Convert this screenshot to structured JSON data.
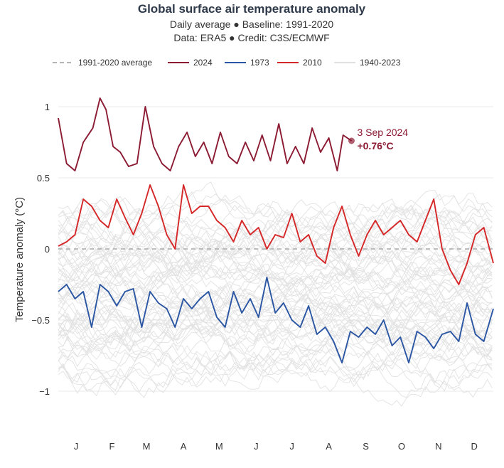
{
  "chart_data": {
    "type": "line",
    "title": "Global surface air temperature anomaly",
    "subtitle_lines": [
      "Daily average ● Baseline: 1991-2020",
      "Data: ERA5 ● Credit: C3S/ECMWF"
    ],
    "ylabel": "Temperature anomaly (°C)",
    "xlabel": "",
    "ylim": [
      -1.25,
      1.15
    ],
    "yticks": [
      1,
      0.5,
      0,
      -0.5,
      -1
    ],
    "ytick_labels": [
      "1",
      "0.5",
      "0",
      "−0.5",
      "−1"
    ],
    "xlim": [
      1,
      366
    ],
    "x_tick_days": [
      16,
      46,
      75,
      106,
      136,
      167,
      197,
      228,
      259,
      289,
      320,
      350
    ],
    "x_tick_labels": [
      "J",
      "F",
      "M",
      "A",
      "M",
      "J",
      "J",
      "A",
      "S",
      "O",
      "N",
      "D"
    ],
    "legend_placement": "top",
    "grid": true,
    "legend": [
      {
        "name": "1991-2020 average",
        "color": "#aaaaaa",
        "dash": true
      },
      {
        "name": "2024",
        "color": "#8b1a32"
      },
      {
        "name": "1973",
        "color": "#2b56a3"
      },
      {
        "name": "2010",
        "color": "#d62728"
      },
      {
        "name": "1940-2023",
        "color": "#e0e0e0"
      }
    ],
    "series": [
      {
        "name": "1991-2020 average",
        "color": "#aaaaaa",
        "x": [
          1,
          366
        ],
        "y": [
          0,
          0
        ]
      },
      {
        "name": "2024",
        "color": "#8b1a32",
        "x": [
          1,
          8,
          15,
          22,
          30,
          36,
          41,
          47,
          53,
          60,
          67,
          74,
          81,
          88,
          95,
          102,
          109,
          116,
          123,
          130,
          137,
          144,
          151,
          158,
          165,
          172,
          179,
          186,
          193,
          200,
          207,
          214,
          221,
          228,
          235,
          240,
          247
        ],
        "y": [
          0.92,
          0.6,
          0.55,
          0.75,
          0.85,
          1.06,
          0.98,
          0.72,
          0.68,
          0.58,
          0.6,
          1.0,
          0.72,
          0.6,
          0.55,
          0.72,
          0.82,
          0.65,
          0.75,
          0.6,
          0.82,
          0.65,
          0.6,
          0.75,
          0.62,
          0.8,
          0.62,
          0.88,
          0.6,
          0.72,
          0.6,
          0.85,
          0.68,
          0.78,
          0.55,
          0.8,
          0.76
        ]
      },
      {
        "name": "1973",
        "color": "#2b56a3",
        "x": [
          1,
          8,
          15,
          22,
          29,
          36,
          43,
          50,
          57,
          64,
          71,
          78,
          85,
          92,
          99,
          106,
          113,
          120,
          127,
          134,
          141,
          148,
          155,
          162,
          169,
          176,
          183,
          190,
          197,
          204,
          211,
          218,
          225,
          232,
          239,
          246,
          253,
          260,
          267,
          274,
          281,
          288,
          295,
          302,
          309,
          316,
          323,
          330,
          337,
          344,
          351,
          358,
          366
        ],
        "y": [
          -0.3,
          -0.25,
          -0.35,
          -0.3,
          -0.55,
          -0.25,
          -0.3,
          -0.4,
          -0.3,
          -0.28,
          -0.55,
          -0.3,
          -0.38,
          -0.42,
          -0.55,
          -0.35,
          -0.42,
          -0.35,
          -0.3,
          -0.48,
          -0.55,
          -0.3,
          -0.45,
          -0.35,
          -0.48,
          -0.2,
          -0.45,
          -0.38,
          -0.5,
          -0.55,
          -0.4,
          -0.6,
          -0.55,
          -0.65,
          -0.8,
          -0.58,
          -0.62,
          -0.55,
          -0.6,
          -0.5,
          -0.68,
          -0.62,
          -0.8,
          -0.58,
          -0.62,
          -0.7,
          -0.6,
          -0.58,
          -0.65,
          -0.38,
          -0.6,
          -0.65,
          -0.42
        ]
      },
      {
        "name": "2010",
        "color": "#d62728",
        "x": [
          1,
          8,
          15,
          22,
          29,
          36,
          43,
          50,
          57,
          64,
          71,
          78,
          85,
          92,
          99,
          106,
          113,
          120,
          127,
          134,
          141,
          148,
          155,
          162,
          169,
          176,
          183,
          190,
          197,
          204,
          211,
          218,
          225,
          232,
          239,
          246,
          253,
          260,
          267,
          274,
          281,
          288,
          295,
          302,
          309,
          316,
          323,
          330,
          337,
          344,
          351,
          358,
          366
        ],
        "y": [
          0.02,
          0.05,
          0.1,
          0.35,
          0.3,
          0.2,
          0.15,
          0.35,
          0.22,
          0.1,
          0.25,
          0.45,
          0.3,
          0.1,
          0.0,
          0.45,
          0.25,
          0.3,
          0.3,
          0.2,
          0.15,
          0.05,
          0.2,
          0.1,
          0.15,
          0.0,
          0.1,
          0.08,
          0.25,
          0.05,
          0.1,
          -0.05,
          -0.1,
          0.15,
          0.3,
          0.1,
          -0.05,
          0.1,
          0.2,
          0.1,
          0.15,
          0.2,
          0.1,
          0.05,
          0.2,
          0.35,
          0.0,
          -0.15,
          -0.25,
          -0.1,
          0.1,
          0.15,
          -0.1
        ]
      }
    ],
    "annotation": {
      "date_label": "3 Sep 2024",
      "value_label": "+0.76°C",
      "x": 247,
      "y": 0.76,
      "color": "#8b1a32"
    }
  }
}
